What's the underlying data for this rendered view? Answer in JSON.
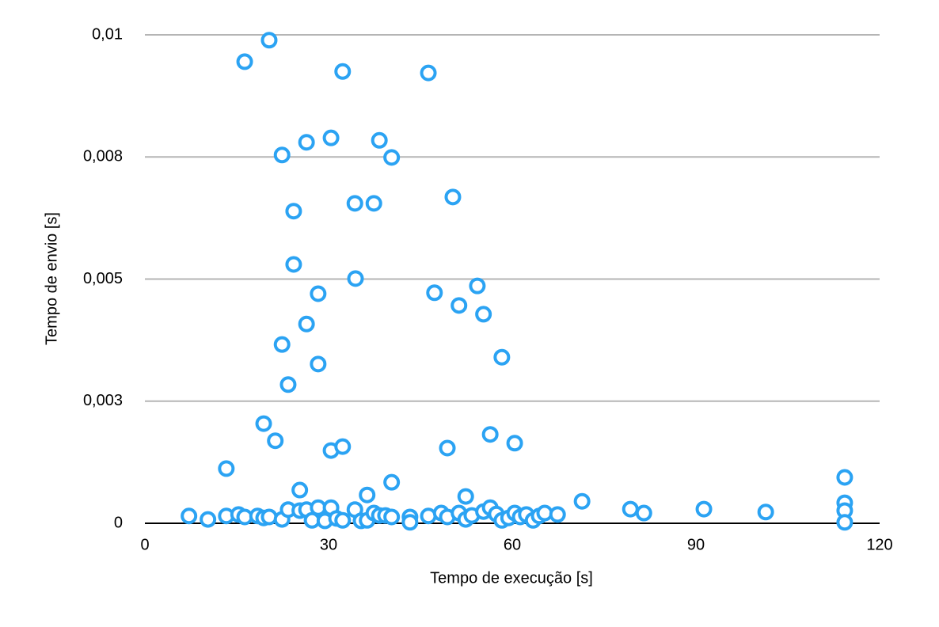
{
  "chart_data": {
    "type": "scatter",
    "x_label": "Tempo de execução [s]",
    "y_label": "Tempo de envio [s]",
    "color": "#2ba3f3",
    "grid": true,
    "xlim": [
      0,
      120
    ],
    "xticks": [
      0,
      30,
      60,
      90,
      120
    ],
    "ylim": [
      0,
      0.01
    ],
    "yticks": [
      0,
      {
        "value": 0.0025,
        "label": "0,003"
      },
      {
        "value": 0.005,
        "label": "0,005"
      },
      {
        "value": 0.0075,
        "label": "0,008"
      },
      {
        "value": 0.01,
        "label": "0,01"
      }
    ],
    "x": [
      16.3,
      20.3,
      32.3,
      46.3,
      22.4,
      26.4,
      30.4,
      38.3,
      40.3,
      50.3,
      34.3,
      37.4,
      24.3,
      24.3,
      34.4,
      28.3,
      47.3,
      54.3,
      51.3,
      55.3,
      26.4,
      22.4,
      28.3,
      58.3,
      23.4,
      19.4,
      21.3,
      30.4,
      32.3,
      49.4,
      56.4,
      60.4,
      13.3,
      40.3,
      25.3,
      36.3,
      52.4,
      114.3,
      114.3,
      114.3,
      114.3,
      71.4,
      79.3,
      81.5,
      91.3,
      101.4,
      7.2,
      10.3,
      13.3,
      15.3,
      16.3,
      18.4,
      19.4,
      20.3,
      22.4,
      23.4,
      25.3,
      26.4,
      27.3,
      28.3,
      29.4,
      30.4,
      31.3,
      32.3,
      34.3,
      35.3,
      36.3,
      37.4,
      38.3,
      39.3,
      40.3,
      43.3,
      43.3,
      46.3,
      48.4,
      49.4,
      51.3,
      52.4,
      53.4,
      55.3,
      56.4,
      57.4,
      58.3,
      59.4,
      60.4,
      61.3,
      62.3,
      63.4,
      64.4,
      65.3,
      67.4
    ],
    "values": [
      0.00945,
      0.00989,
      0.00925,
      0.00922,
      0.00754,
      0.0078,
      0.00789,
      0.00784,
      0.00749,
      0.00668,
      0.00655,
      0.00655,
      0.00639,
      0.0053,
      0.00501,
      0.0047,
      0.00472,
      0.00486,
      0.00446,
      0.00428,
      0.00408,
      0.00366,
      0.00326,
      0.0034,
      0.00284,
      0.00204,
      0.00169,
      0.00149,
      0.00157,
      0.00154,
      0.00182,
      0.00164,
      0.00112,
      0.00084,
      0.00068,
      0.00058,
      0.00055,
      0.00094,
      0.00042,
      0.00026,
      2e-05,
      0.00045,
      0.00029,
      0.00021,
      0.00029,
      0.00023,
      0.00015,
      8e-05,
      0.00015,
      0.00018,
      0.00013,
      0.00015,
      0.00011,
      0.00013,
      8e-05,
      0.00028,
      0.00026,
      0.00028,
      6e-05,
      0.00032,
      5e-05,
      0.00032,
      0.0001,
      6e-05,
      0.00028,
      5e-05,
      6e-05,
      0.00021,
      0.00016,
      0.00016,
      0.00013,
      0.00013,
      2e-05,
      0.00015,
      0.00021,
      0.00013,
      0.00021,
      8e-05,
      0.00016,
      0.00024,
      0.00032,
      0.00019,
      6e-05,
      0.00011,
      0.00021,
      0.00013,
      0.00018,
      6e-05,
      0.00015,
      0.00021,
      0.00018
    ]
  }
}
